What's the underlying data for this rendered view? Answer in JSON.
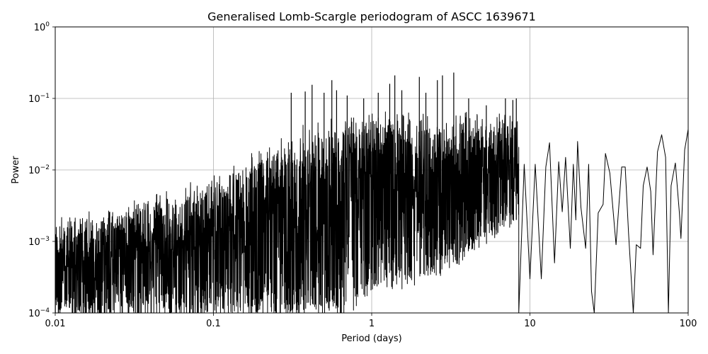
{
  "chart_data": {
    "type": "line",
    "title": "Generalised Lomb-Scargle periodogram of ASCC 1639671",
    "xlabel": "Period (days)",
    "ylabel": "Power",
    "xscale": "log",
    "yscale": "log",
    "xlim": [
      0.01,
      100
    ],
    "ylim": [
      0.0001,
      1
    ],
    "grid": true,
    "line_color": "#000000",
    "grid_color": "#b0b0b0",
    "x_ticks": [
      {
        "value": 0.01,
        "label": "0.01"
      },
      {
        "value": 0.1,
        "label": "0.1"
      },
      {
        "value": 1,
        "label": "1"
      },
      {
        "value": 10,
        "label": "10"
      },
      {
        "value": 100,
        "label": "100"
      }
    ],
    "y_ticks": [
      {
        "value": 0.0001,
        "base": "10",
        "exp": "−4"
      },
      {
        "value": 0.001,
        "base": "10",
        "exp": "−3"
      },
      {
        "value": 0.01,
        "base": "10",
        "exp": "−2"
      },
      {
        "value": 0.1,
        "base": "10",
        "exp": "−1"
      },
      {
        "value": 1,
        "base": "10",
        "exp": "0"
      }
    ],
    "long_period_points": [
      [
        8.5,
        0.0001
      ],
      [
        9.2,
        0.012
      ],
      [
        10.0,
        0.0003
      ],
      [
        10.8,
        0.012
      ],
      [
        11.8,
        0.0003
      ],
      [
        12.6,
        0.011
      ],
      [
        13.3,
        0.024
      ],
      [
        14.3,
        0.0005
      ],
      [
        15.2,
        0.013
      ],
      [
        16.0,
        0.0026
      ],
      [
        16.8,
        0.015
      ],
      [
        18.0,
        0.0008
      ],
      [
        18.8,
        0.012
      ],
      [
        19.5,
        0.002
      ],
      [
        20.0,
        0.025
      ],
      [
        21.0,
        0.003
      ],
      [
        22.5,
        0.0008
      ],
      [
        23.5,
        0.012
      ],
      [
        24.5,
        0.0002
      ],
      [
        25.5,
        0.0001
      ],
      [
        27.0,
        0.0025
      ],
      [
        29.0,
        0.0033
      ],
      [
        30.0,
        0.017
      ],
      [
        32.0,
        0.009
      ],
      [
        35.0,
        0.0009
      ],
      [
        38.0,
        0.011
      ],
      [
        40.0,
        0.011
      ],
      [
        42.0,
        0.0013
      ],
      [
        45.0,
        0.0001
      ],
      [
        47.0,
        0.0009
      ],
      [
        50.0,
        0.0008
      ],
      [
        52.0,
        0.006
      ],
      [
        55.0,
        0.011
      ],
      [
        58.0,
        0.005
      ],
      [
        60.0,
        0.00065
      ],
      [
        64.0,
        0.018
      ],
      [
        68.0,
        0.031
      ],
      [
        72.0,
        0.015
      ],
      [
        75.0,
        0.0001
      ],
      [
        78.0,
        0.006
      ],
      [
        83.0,
        0.0125
      ],
      [
        88.0,
        0.0025
      ],
      [
        90.0,
        0.0011
      ],
      [
        95.0,
        0.019
      ],
      [
        100.0,
        0.037
      ]
    ],
    "peak_points": [
      [
        0.31,
        0.12
      ],
      [
        0.38,
        0.125
      ],
      [
        0.42,
        0.155
      ],
      [
        0.5,
        0.12
      ],
      [
        0.56,
        0.18
      ],
      [
        0.6,
        0.13
      ],
      [
        0.7,
        0.11
      ],
      [
        0.89,
        0.1
      ],
      [
        1.1,
        0.12
      ],
      [
        1.3,
        0.16
      ],
      [
        1.4,
        0.21
      ],
      [
        1.55,
        0.13
      ],
      [
        2.0,
        0.2
      ],
      [
        2.2,
        0.12
      ],
      [
        2.6,
        0.18
      ],
      [
        2.8,
        0.21
      ],
      [
        3.3,
        0.23
      ],
      [
        4.1,
        0.1
      ],
      [
        5.3,
        0.08
      ],
      [
        7.0,
        0.1
      ],
      [
        7.8,
        0.095
      ],
      [
        8.2,
        0.1
      ]
    ],
    "envelope": {
      "top": [
        [
          0.01,
          0.0015
        ],
        [
          0.1,
          0.006
        ],
        [
          0.3,
          0.03
        ],
        [
          1.0,
          0.05
        ],
        [
          4.0,
          0.05
        ],
        [
          8.5,
          0.05
        ]
      ],
      "bottom": [
        [
          0.01,
          0.0001
        ],
        [
          0.6,
          0.0001
        ],
        [
          1.0,
          0.0002
        ],
        [
          3.0,
          0.0005
        ],
        [
          8.5,
          0.002
        ]
      ]
    }
  }
}
